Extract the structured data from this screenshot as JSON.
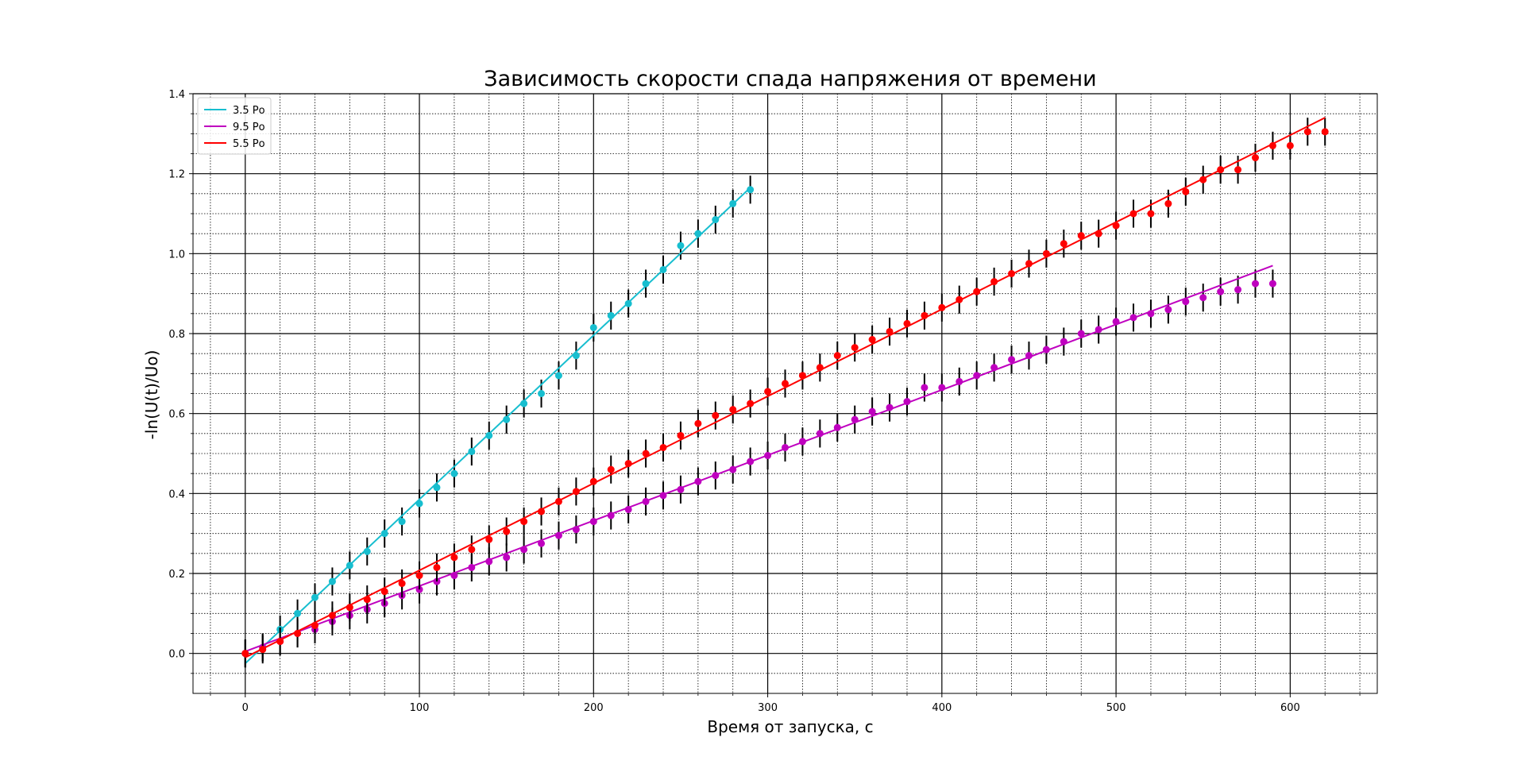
{
  "chart_data": {
    "type": "scatter",
    "title": "Зависимость скорости спада напряжения от времени",
    "xlabel": "Время от запуска, с",
    "ylabel": "-ln(U(t)/Uo)",
    "xlim": [
      -30,
      650
    ],
    "ylim": [
      -0.1,
      1.4
    ],
    "grid": true,
    "legend_placement": "top-left",
    "x_ticks": [
      0,
      100,
      200,
      300,
      400,
      500,
      600
    ],
    "x_tick_labels": [
      "0",
      "100",
      "200",
      "300",
      "400",
      "500",
      "600"
    ],
    "y_ticks": [
      0.0,
      0.2,
      0.4,
      0.6,
      0.8,
      1.0,
      1.2,
      1.4
    ],
    "y_tick_labels": [
      "0.0",
      "0.2",
      "0.4",
      "0.6",
      "0.8",
      "1.0",
      "1.2",
      "1.4"
    ],
    "error_bar": 0.035,
    "series": [
      {
        "name": "3.5 Ро",
        "color": "#17becf",
        "fit": {
          "x": [
            0,
            290
          ],
          "y": [
            -0.025,
            1.165
          ]
        },
        "x": [
          0,
          10,
          20,
          30,
          40,
          50,
          60,
          70,
          80,
          90,
          100,
          110,
          120,
          130,
          140,
          150,
          160,
          170,
          180,
          190,
          200,
          210,
          220,
          230,
          240,
          250,
          260,
          270,
          280,
          290
        ],
        "y": [
          0.0,
          0.015,
          0.06,
          0.1,
          0.14,
          0.18,
          0.22,
          0.255,
          0.3,
          0.33,
          0.375,
          0.415,
          0.45,
          0.505,
          0.545,
          0.585,
          0.625,
          0.65,
          0.695,
          0.745,
          0.815,
          0.845,
          0.875,
          0.925,
          0.96,
          1.02,
          1.05,
          1.085,
          1.125,
          1.16
        ]
      },
      {
        "name": "9.5 Ро",
        "color": "#bf00bf",
        "fit": {
          "x": [
            0,
            590
          ],
          "y": [
            0.005,
            0.97
          ]
        },
        "x": [
          0,
          10,
          20,
          30,
          40,
          50,
          60,
          70,
          80,
          90,
          100,
          110,
          120,
          130,
          140,
          150,
          160,
          170,
          180,
          190,
          200,
          210,
          220,
          230,
          240,
          250,
          260,
          270,
          280,
          290,
          300,
          310,
          320,
          330,
          340,
          350,
          360,
          370,
          380,
          390,
          400,
          410,
          420,
          430,
          440,
          450,
          460,
          470,
          480,
          490,
          500,
          510,
          520,
          530,
          540,
          550,
          560,
          570,
          580,
          590
        ],
        "y": [
          0.0,
          0.015,
          0.03,
          0.05,
          0.06,
          0.08,
          0.095,
          0.11,
          0.125,
          0.145,
          0.16,
          0.18,
          0.195,
          0.215,
          0.23,
          0.24,
          0.26,
          0.275,
          0.295,
          0.31,
          0.33,
          0.345,
          0.36,
          0.38,
          0.395,
          0.41,
          0.43,
          0.445,
          0.46,
          0.48,
          0.495,
          0.515,
          0.53,
          0.55,
          0.565,
          0.585,
          0.605,
          0.615,
          0.63,
          0.665,
          0.665,
          0.68,
          0.695,
          0.715,
          0.735,
          0.745,
          0.76,
          0.78,
          0.8,
          0.81,
          0.83,
          0.84,
          0.85,
          0.86,
          0.88,
          0.89,
          0.905,
          0.91,
          0.925,
          0.925
        ]
      },
      {
        "name": "5.5 Ро",
        "color": "#ff0000",
        "fit": {
          "x": [
            0,
            620
          ],
          "y": [
            -0.01,
            1.34
          ]
        },
        "x": [
          0,
          10,
          20,
          30,
          40,
          50,
          60,
          70,
          80,
          90,
          100,
          110,
          120,
          130,
          140,
          150,
          160,
          170,
          180,
          190,
          200,
          210,
          220,
          230,
          240,
          250,
          260,
          270,
          280,
          290,
          300,
          310,
          320,
          330,
          340,
          350,
          360,
          370,
          380,
          390,
          400,
          410,
          420,
          430,
          440,
          450,
          460,
          470,
          480,
          490,
          500,
          510,
          520,
          530,
          540,
          550,
          560,
          570,
          580,
          590,
          600,
          610,
          620
        ],
        "y": [
          0.0,
          0.01,
          0.03,
          0.05,
          0.07,
          0.095,
          0.115,
          0.135,
          0.155,
          0.175,
          0.195,
          0.215,
          0.24,
          0.26,
          0.285,
          0.305,
          0.33,
          0.355,
          0.38,
          0.405,
          0.43,
          0.46,
          0.475,
          0.5,
          0.515,
          0.545,
          0.575,
          0.595,
          0.61,
          0.625,
          0.655,
          0.675,
          0.695,
          0.715,
          0.745,
          0.765,
          0.785,
          0.805,
          0.825,
          0.845,
          0.865,
          0.885,
          0.905,
          0.93,
          0.95,
          0.975,
          1.0,
          1.025,
          1.045,
          1.05,
          1.07,
          1.1,
          1.1,
          1.125,
          1.155,
          1.185,
          1.21,
          1.21,
          1.24,
          1.27,
          1.27,
          1.305,
          1.305
        ]
      }
    ]
  }
}
